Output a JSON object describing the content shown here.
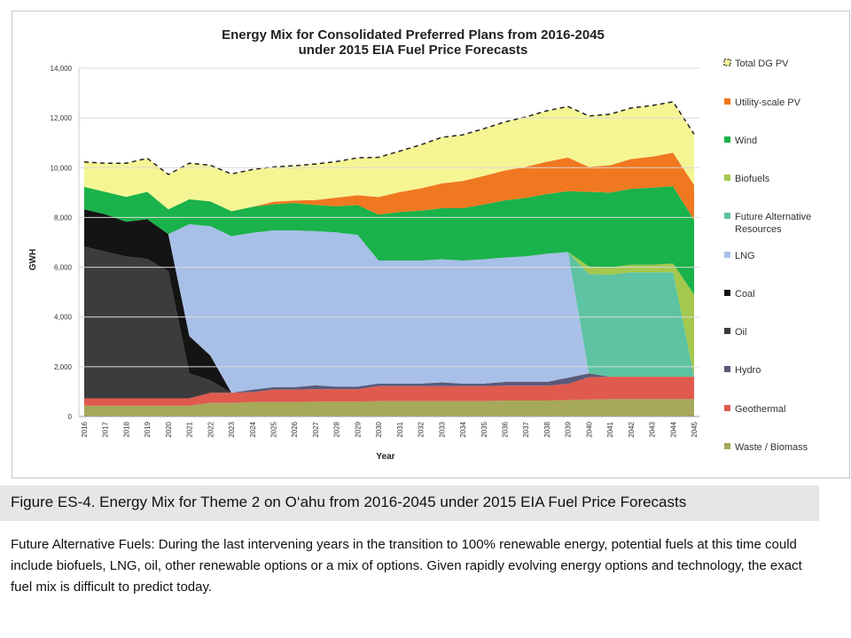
{
  "chart_data": {
    "type": "area",
    "title_line1": "Energy Mix for Consolidated Preferred Plans from 2016-2045",
    "title_line2": "under 2015 EIA Fuel Price Forecasts",
    "xlabel": "Year",
    "ylabel": "GWH",
    "ylim": [
      0,
      14000
    ],
    "y_ticks": [
      "0",
      "2,000",
      "4,000",
      "6,000",
      "8,000",
      "10,000",
      "12,000",
      "14,000"
    ],
    "x": [
      "2016",
      "2017",
      "2018",
      "2019",
      "2020",
      "2021",
      "2022",
      "2023",
      "2024",
      "2025",
      "2026",
      "2027",
      "2028",
      "2029",
      "2030",
      "2031",
      "2032",
      "2033",
      "2034",
      "2035",
      "2036",
      "2037",
      "2038",
      "2039",
      "2040",
      "2041",
      "2042",
      "2043",
      "2044",
      "2045"
    ],
    "legend_position": "right",
    "series": [
      {
        "name": "Waste / Biomass",
        "color": "#a6a85a",
        "values": [
          430,
          430,
          430,
          430,
          430,
          430,
          550,
          550,
          580,
          580,
          580,
          600,
          600,
          600,
          620,
          620,
          620,
          620,
          620,
          620,
          640,
          640,
          640,
          660,
          680,
          700,
          700,
          700,
          700,
          700
        ]
      },
      {
        "name": "Geothermal",
        "color": "#e05a4e",
        "values": [
          300,
          300,
          300,
          300,
          300,
          300,
          400,
          400,
          400,
          500,
          500,
          500,
          500,
          500,
          600,
          600,
          600,
          600,
          600,
          600,
          600,
          600,
          600,
          650,
          900,
          900,
          900,
          900,
          900,
          900
        ]
      },
      {
        "name": "Hydro",
        "color": "#5a5a78",
        "values": [
          0,
          0,
          0,
          0,
          0,
          0,
          0,
          0,
          100,
          100,
          100,
          150,
          100,
          100,
          100,
          100,
          100,
          150,
          100,
          100,
          150,
          150,
          150,
          250,
          150,
          0,
          0,
          0,
          0,
          0
        ]
      },
      {
        "name": "Oil",
        "color": "#3c3c3c",
        "values": [
          6100,
          5900,
          5700,
          5600,
          5100,
          1000,
          500,
          0,
          0,
          0,
          0,
          0,
          0,
          0,
          0,
          0,
          0,
          0,
          0,
          0,
          0,
          0,
          0,
          0,
          0,
          0,
          0,
          0,
          0,
          0
        ]
      },
      {
        "name": "Coal",
        "color": "#141414",
        "values": [
          1500,
          1500,
          1400,
          1600,
          1500,
          1500,
          1000,
          0,
          0,
          0,
          0,
          0,
          0,
          0,
          0,
          0,
          0,
          0,
          0,
          0,
          0,
          0,
          0,
          0,
          0,
          0,
          0,
          0,
          0,
          0
        ]
      },
      {
        "name": "LNG",
        "color": "#a8c0e8",
        "values": [
          0,
          0,
          0,
          0,
          0,
          4500,
          5200,
          6300,
          6300,
          6300,
          6300,
          6200,
          6200,
          6100,
          4950,
          4950,
          4950,
          4950,
          4950,
          5000,
          5000,
          5050,
          5150,
          5050,
          0,
          0,
          0,
          0,
          0,
          0
        ]
      },
      {
        "name": "Future Alternative Resources",
        "color": "#5dc3a2",
        "values": [
          0,
          0,
          0,
          0,
          0,
          0,
          0,
          0,
          0,
          0,
          0,
          0,
          0,
          0,
          0,
          0,
          0,
          0,
          0,
          0,
          0,
          0,
          0,
          0,
          4000,
          4100,
          4200,
          4200,
          4200,
          0
        ]
      },
      {
        "name": "Biofuels",
        "color": "#a4c84c",
        "values": [
          0,
          0,
          0,
          0,
          0,
          0,
          0,
          0,
          0,
          0,
          0,
          0,
          0,
          0,
          0,
          0,
          0,
          0,
          0,
          0,
          0,
          0,
          0,
          0,
          300,
          300,
          300,
          300,
          350,
          3300
        ]
      },
      {
        "name": "Wind",
        "color": "#1ab24a",
        "values": [
          900,
          900,
          1000,
          1100,
          1000,
          1000,
          1000,
          1000,
          1050,
          1050,
          1100,
          1050,
          1050,
          1200,
          1850,
          1950,
          2000,
          2050,
          2100,
          2200,
          2300,
          2350,
          2400,
          2450,
          3000,
          3000,
          3050,
          3100,
          3100,
          3000
        ]
      },
      {
        "name": "Utility-scale PV",
        "color": "#f07820",
        "values": [
          0,
          0,
          0,
          0,
          0,
          0,
          0,
          0,
          0,
          100,
          100,
          200,
          350,
          400,
          700,
          800,
          900,
          1000,
          1100,
          1150,
          1200,
          1250,
          1300,
          1350,
          1000,
          1100,
          1200,
          1250,
          1350,
          1400
        ]
      },
      {
        "name": "Total DG PV",
        "color": "#f5f594",
        "values": [
          1000,
          1150,
          1350,
          1350,
          1400,
          1450,
          1450,
          1500,
          1500,
          1400,
          1400,
          1450,
          1450,
          1500,
          1600,
          1650,
          1750,
          1850,
          1850,
          1900,
          1950,
          2000,
          2050,
          2050,
          2050,
          2050,
          2050,
          2050,
          2050,
          2050
        ]
      }
    ],
    "legend": [
      {
        "name": "Total DG PV",
        "color": "#f5f594",
        "dashed": true
      },
      {
        "name": "Utility-scale PV",
        "color": "#f07820"
      },
      {
        "name": "Wind",
        "color": "#1ab24a"
      },
      {
        "name": "Biofuels",
        "color": "#a4c84c"
      },
      {
        "name": "Future Alternative Resources",
        "color": "#5dc3a2"
      },
      {
        "name": "LNG",
        "color": "#a8c0e8"
      },
      {
        "name": "Coal",
        "color": "#141414"
      },
      {
        "name": "Oil",
        "color": "#3c3c3c"
      },
      {
        "name": "Hydro",
        "color": "#5a5a78"
      },
      {
        "name": "Geothermal",
        "color": "#e05a4e"
      },
      {
        "name": "Waste / Biomass",
        "color": "#a6a85a"
      }
    ]
  },
  "caption": "Figure ES-4.  Energy Mix for Theme 2 on O‘ahu from 2016-2045 under 2015 EIA Fuel Price Forecasts",
  "note": "Future Alternative Fuels: During the last intervening years in the transition to 100% renewable energy, potential fuels at this time could include biofuels, LNG, oil, other renewable options or a mix of options. Given rapidly evolving energy options and technology, the exact fuel mix is difficult to predict today."
}
